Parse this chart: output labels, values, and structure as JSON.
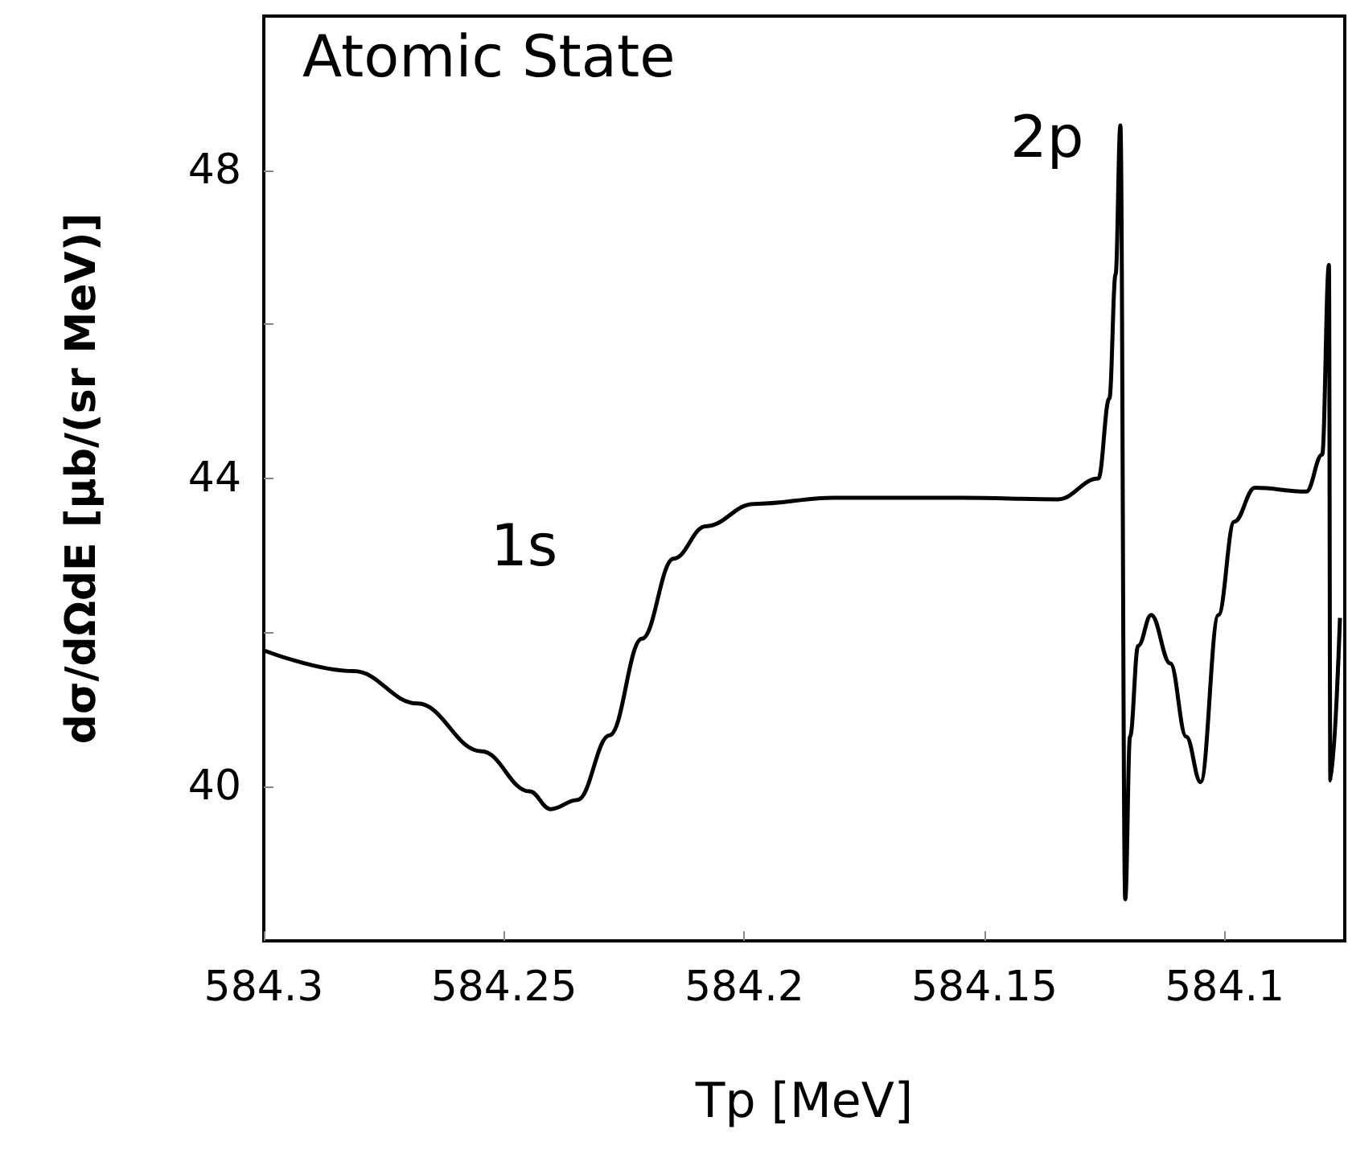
{
  "chart_data": {
    "type": "line",
    "xlabel": "Tp [MeV]",
    "ylabel": "dσ/dΩdE [μb/(sr MeV)]",
    "annotations": [
      "Atomic State",
      "1s",
      "2p"
    ],
    "series": [
      {
        "color": "#000000",
        "x": [
          584.3,
          584.2813,
          584.268,
          584.2547,
          584.2447,
          584.2403,
          584.2347,
          584.228,
          584.2213,
          584.2147,
          584.208,
          584.198,
          584.1813,
          584.1547,
          584.1347,
          584.1263,
          584.124,
          584.1227,
          584.1217,
          584.1207,
          584.1197,
          584.118,
          584.1153,
          584.1113,
          584.108,
          584.105,
          584.1013,
          584.098,
          584.0937,
          584.083,
          584.0797,
          584.0783,
          584.078,
          584.076
        ],
        "values": [
          41.77,
          41.5,
          41.08,
          40.46,
          39.94,
          39.71,
          39.83,
          40.67,
          41.92,
          42.96,
          43.38,
          43.67,
          43.75,
          43.75,
          43.73,
          44.0,
          45.04,
          46.65,
          48.58,
          38.54,
          40.65,
          41.83,
          42.23,
          41.6,
          40.65,
          40.06,
          42.23,
          43.44,
          43.88,
          43.83,
          44.31,
          46.77,
          40.08,
          42.19
        ]
      }
    ],
    "xlim": [
      584.3,
      584.075
    ],
    "xticks": [
      584.3,
      584.25,
      584.2,
      584.15,
      584.1
    ],
    "ylim": [
      38,
      50
    ],
    "yticks": [
      40,
      {
        "value": 42,
        "label": null
      },
      44,
      {
        "value": 46,
        "label": null
      },
      48
    ],
    "grid": false,
    "marker": "none",
    "line_style": "solid"
  }
}
